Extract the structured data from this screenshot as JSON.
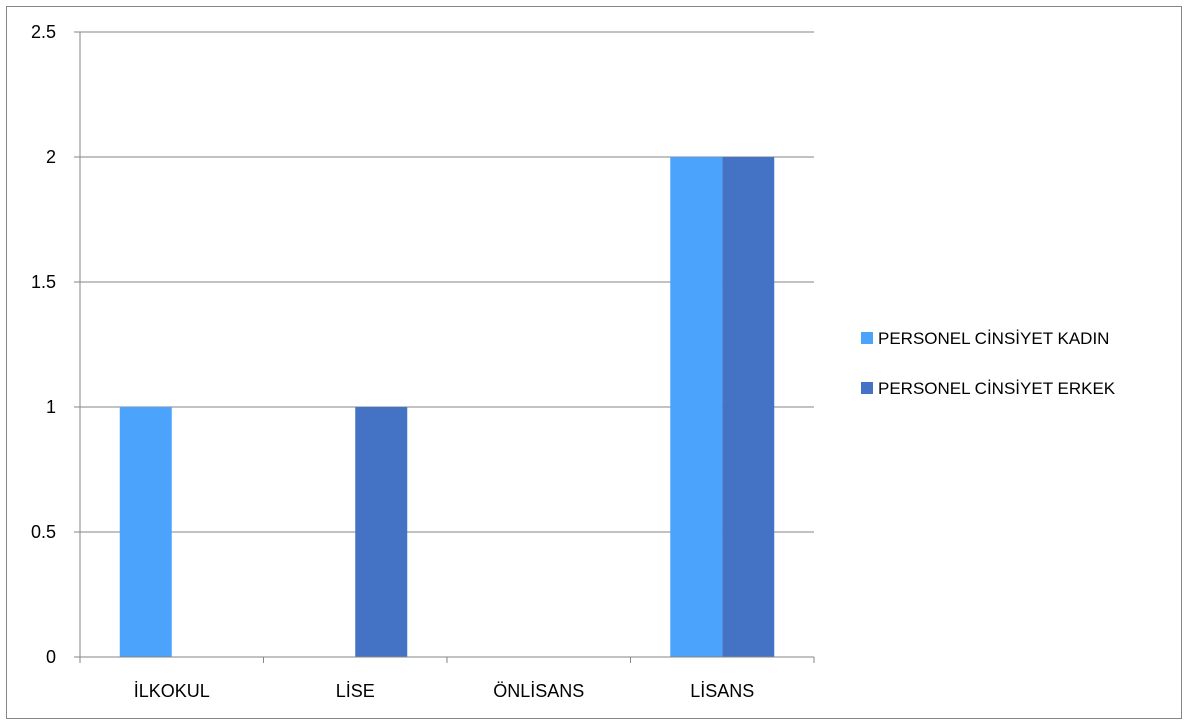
{
  "chart_data": {
    "type": "bar",
    "categories": [
      "İLKOKUL",
      "LİSE",
      "ÖNLİSANS",
      "LİSANS"
    ],
    "series": [
      {
        "name": "PERSONEL CİNSİYET  KADIN",
        "values": [
          1,
          0,
          0,
          2
        ],
        "color": "#4BA3FC"
      },
      {
        "name": "PERSONEL CİNSİYET  ERKEK",
        "values": [
          0,
          1,
          0,
          2
        ],
        "color": "#4472C4"
      }
    ],
    "ylim": [
      0,
      2.5
    ],
    "yticks": [
      "0",
      "0.5",
      "1",
      "1.5",
      "2",
      "2.5"
    ],
    "grid": true,
    "legend_position": "right"
  }
}
